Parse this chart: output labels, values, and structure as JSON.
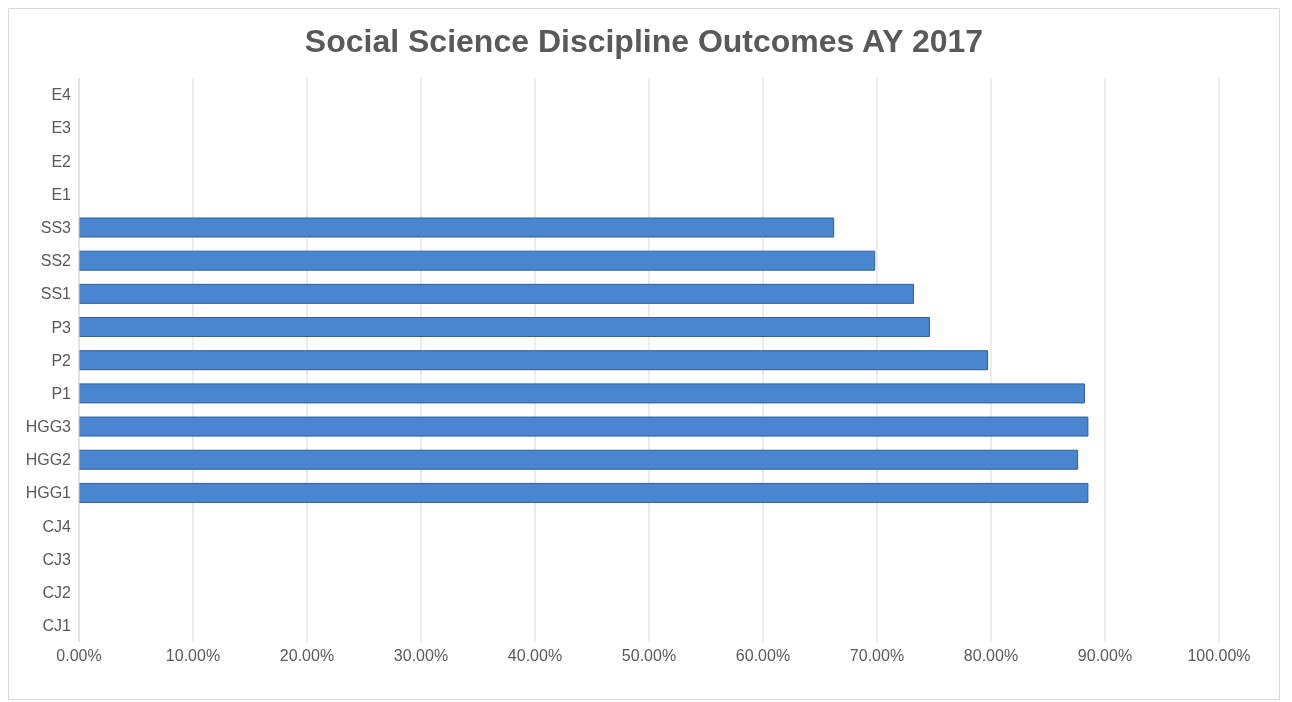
{
  "chart_data": {
    "type": "bar",
    "orientation": "horizontal",
    "title": "Social Science Discipline Outcomes AY 2017",
    "categories": [
      "E4",
      "E3",
      "E2",
      "E1",
      "SS3",
      "SS2",
      "SS1",
      "P3",
      "P2",
      "P1",
      "HGG3",
      "HGG2",
      "HGG1",
      "CJ4",
      "CJ3",
      "CJ2",
      "CJ1"
    ],
    "values": [
      null,
      null,
      null,
      null,
      66.2,
      69.8,
      73.2,
      74.6,
      79.7,
      88.2,
      88.5,
      87.6,
      88.5,
      null,
      null,
      null,
      null
    ],
    "color": "#4a86cf",
    "xlim": [
      0,
      100
    ],
    "xticks": [
      {
        "value": 0,
        "label": "0.00%"
      },
      {
        "value": 10,
        "label": "10.00%"
      },
      {
        "value": 20,
        "label": "20.00%"
      },
      {
        "value": 30,
        "label": "30.00%"
      },
      {
        "value": 40,
        "label": "40.00%"
      },
      {
        "value": 50,
        "label": "50.00%"
      },
      {
        "value": 60,
        "label": "60.00%"
      },
      {
        "value": 70,
        "label": "70.00%"
      },
      {
        "value": 80,
        "label": "80.00%"
      },
      {
        "value": 90,
        "label": "90.00%"
      },
      {
        "value": 100,
        "label": "100.00%"
      }
    ],
    "grid": "x"
  }
}
